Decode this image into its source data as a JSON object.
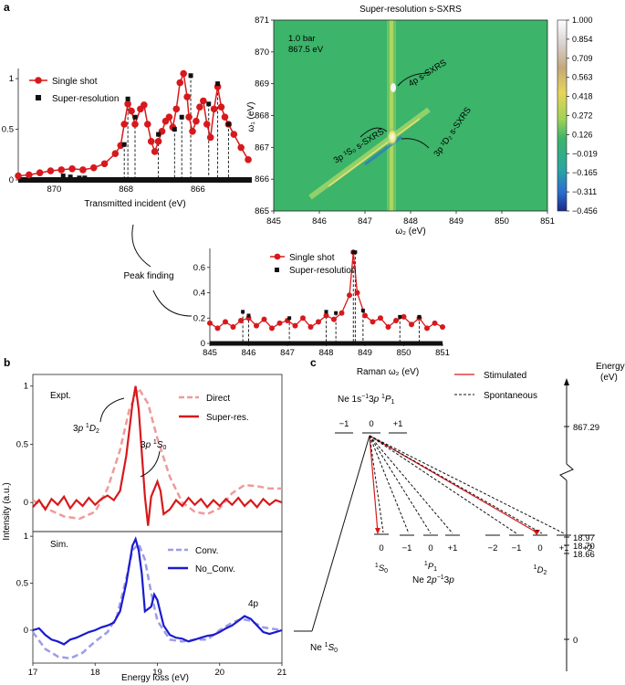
{
  "panel_labels": {
    "a": "a",
    "b": "b",
    "c": "c"
  },
  "chart_data": [
    {
      "id": "a_left",
      "type": "scatter",
      "xlabel": "Transmitted incident (eV)",
      "xlim": [
        871,
        864.5
      ],
      "ylim": [
        0,
        1.1
      ],
      "xticks": [
        870,
        868,
        866
      ],
      "yticks": [
        0,
        0.5,
        1.0
      ],
      "legend": [
        "Single shot",
        "Super-resolution"
      ],
      "series": [
        {
          "name": "Single shot",
          "x": [
            871.0,
            870.7,
            870.4,
            870.1,
            869.8,
            869.5,
            869.2,
            868.9,
            868.6,
            868.3,
            868.15,
            868.05,
            867.95,
            867.85,
            867.75,
            867.6,
            867.5,
            867.4,
            867.3,
            867.2,
            867.1,
            867.0,
            866.9,
            866.8,
            866.7,
            866.6,
            866.5,
            866.4,
            866.3,
            866.25,
            866.15,
            866.05,
            865.95,
            865.85,
            865.75,
            865.65,
            865.55,
            865.45,
            865.35,
            865.25,
            865.15,
            865.0,
            864.8,
            864.6
          ],
          "y": [
            0.04,
            0.05,
            0.07,
            0.09,
            0.1,
            0.11,
            0.1,
            0.12,
            0.16,
            0.26,
            0.34,
            0.55,
            0.75,
            0.68,
            0.55,
            0.7,
            0.74,
            0.55,
            0.38,
            0.28,
            0.38,
            0.48,
            0.58,
            0.62,
            0.52,
            0.7,
            0.96,
            1.05,
            0.82,
            0.62,
            0.48,
            0.58,
            0.72,
            0.78,
            0.55,
            0.42,
            0.7,
            0.92,
            0.72,
            0.62,
            0.55,
            0.45,
            0.32,
            0.2
          ]
        },
        {
          "name": "Super-resolution",
          "x": [
            869.75,
            869.55,
            869.3,
            869.15,
            868.05,
            867.95,
            867.75,
            867.1,
            866.65,
            866.45,
            866.2,
            865.7,
            865.45,
            865.15
          ],
          "y": [
            0.04,
            0.03,
            0.02,
            0.02,
            0.35,
            0.8,
            0.62,
            0.45,
            0.5,
            0.62,
            1.03,
            0.75,
            0.95,
            0.55
          ]
        }
      ]
    },
    {
      "id": "a_map",
      "type": "heatmap",
      "title": "Super-resolution s-SXRS",
      "xlabel": "ω₂ (eV)",
      "ylabel": "ω₁ (eV)",
      "xlim": [
        845,
        851
      ],
      "ylim": [
        865,
        871
      ],
      "xticks": [
        845,
        846,
        847,
        848,
        849,
        850,
        851
      ],
      "yticks": [
        865,
        866,
        867,
        868,
        869,
        870,
        871
      ],
      "annotations": [
        "1.0 bar",
        "867.5 eV",
        "4p s-SXRS",
        "3p ¹S₀ s-SXRS",
        "3p ¹D₂ s-SXRS"
      ],
      "colorbar": [
        1.0,
        0.854,
        0.709,
        0.563,
        0.418,
        0.272,
        0.126,
        -0.019,
        -0.165,
        -0.311,
        -0.456
      ]
    },
    {
      "id": "a_raman",
      "type": "scatter",
      "xlabel": "Raman ω₂ (eV)",
      "xlim": [
        845,
        851
      ],
      "ylim": [
        0,
        0.75
      ],
      "xticks": [
        845,
        846,
        847,
        848,
        849,
        850,
        851
      ],
      "yticks": [
        0,
        0.2,
        0.4,
        0.6
      ],
      "legend": [
        "Single shot",
        "Super-resolution"
      ],
      "series": [
        {
          "name": "Single shot",
          "x": [
            845.0,
            845.2,
            845.4,
            845.6,
            845.8,
            846.0,
            846.2,
            846.4,
            846.6,
            846.8,
            847.0,
            847.2,
            847.4,
            847.6,
            847.8,
            848.0,
            848.2,
            848.4,
            848.6,
            848.7,
            848.8,
            849.0,
            849.2,
            849.4,
            849.6,
            849.8,
            850.0,
            850.2,
            850.4,
            850.6,
            850.8,
            851.0
          ],
          "y": [
            0.16,
            0.12,
            0.17,
            0.13,
            0.18,
            0.2,
            0.14,
            0.19,
            0.12,
            0.16,
            0.18,
            0.14,
            0.2,
            0.13,
            0.17,
            0.22,
            0.19,
            0.24,
            0.38,
            0.72,
            0.4,
            0.22,
            0.17,
            0.2,
            0.13,
            0.18,
            0.21,
            0.15,
            0.2,
            0.12,
            0.16,
            0.13
          ]
        },
        {
          "name": "Super-resolution",
          "x": [
            845.85,
            846.0,
            847.05,
            848.0,
            848.25,
            848.7,
            848.75,
            848.95,
            849.9,
            850.4
          ],
          "y": [
            0.25,
            0.22,
            0.2,
            0.25,
            0.24,
            0.72,
            0.72,
            0.26,
            0.21,
            0.21
          ]
        }
      ]
    },
    {
      "id": "b_top",
      "type": "line",
      "ylabel": "Intensity (a.u.)",
      "xlim": [
        17,
        21
      ],
      "ylim": [
        -0.25,
        1.1
      ],
      "xticks": [
        17,
        18,
        19,
        20,
        21
      ],
      "yticks": [
        0,
        0.5,
        1.0
      ],
      "annotations": [
        "Expt.",
        "3p ¹D₂",
        "3p ¹S₀"
      ],
      "series": [
        {
          "name": "Direct",
          "x": [
            17.0,
            17.25,
            17.5,
            17.75,
            18.0,
            18.2,
            18.4,
            18.55,
            18.7,
            18.85,
            19.0,
            19.2,
            19.4,
            19.6,
            19.8,
            20.0,
            20.2,
            20.4,
            20.6,
            20.8,
            21.0
          ],
          "y": [
            0.02,
            -0.06,
            -0.12,
            -0.14,
            -0.08,
            0.12,
            0.45,
            0.8,
            0.98,
            0.85,
            0.55,
            0.22,
            0.0,
            -0.08,
            -0.1,
            -0.05,
            0.08,
            0.15,
            0.14,
            0.12,
            0.12
          ]
        },
        {
          "name": "Super-res.",
          "x": [
            17.0,
            17.1,
            17.2,
            17.3,
            17.4,
            17.5,
            17.6,
            17.7,
            17.8,
            17.9,
            18.0,
            18.1,
            18.2,
            18.3,
            18.4,
            18.5,
            18.6,
            18.65,
            18.7,
            18.8,
            18.85,
            18.9,
            19.0,
            19.05,
            19.1,
            19.2,
            19.3,
            19.4,
            19.5,
            19.6,
            19.7,
            19.8,
            19.9,
            20.0,
            20.1,
            20.2,
            20.3,
            20.4,
            20.5,
            20.6,
            20.7,
            20.8,
            20.9,
            21.0
          ],
          "y": [
            -0.04,
            0.02,
            -0.06,
            0.03,
            -0.02,
            0.05,
            -0.05,
            0.02,
            -0.03,
            0.04,
            -0.02,
            0.03,
            0.06,
            0.02,
            0.1,
            0.4,
            0.85,
            1.0,
            0.8,
            0.05,
            -0.2,
            0.05,
            0.18,
            0.1,
            -0.1,
            -0.06,
            0.02,
            -0.03,
            0.04,
            -0.02,
            0.03,
            -0.04,
            0.02,
            -0.03,
            0.03,
            -0.02,
            0.04,
            -0.03,
            0.02,
            -0.04,
            0.03,
            -0.02,
            0.02,
            0.0
          ]
        }
      ]
    },
    {
      "id": "b_bottom",
      "type": "line",
      "xlabel": "Energy loss (eV)",
      "xlim": [
        17,
        21
      ],
      "ylim": [
        -0.35,
        1.05
      ],
      "xticks": [
        17,
        18,
        19,
        20,
        21
      ],
      "yticks": [
        0,
        0.5,
        1.0
      ],
      "annotations": [
        "Sim.",
        "4p"
      ],
      "series": [
        {
          "name": "Conv.",
          "x": [
            17.0,
            17.2,
            17.4,
            17.6,
            17.8,
            18.0,
            18.2,
            18.35,
            18.5,
            18.6,
            18.7,
            18.8,
            18.9,
            19.0,
            19.2,
            19.4,
            19.6,
            19.8,
            20.0,
            20.2,
            20.35,
            20.5,
            20.7,
            21.0
          ],
          "y": [
            -0.02,
            -0.2,
            -0.28,
            -0.3,
            -0.24,
            -0.12,
            -0.02,
            0.15,
            0.55,
            0.85,
            0.92,
            0.75,
            0.4,
            0.1,
            -0.1,
            -0.12,
            -0.1,
            -0.1,
            0.0,
            0.08,
            0.12,
            0.1,
            0.03,
            0.0
          ]
        },
        {
          "name": "No_Conv.",
          "x": [
            17.0,
            17.1,
            17.2,
            17.3,
            17.4,
            17.5,
            17.6,
            17.7,
            17.8,
            17.9,
            18.0,
            18.1,
            18.2,
            18.3,
            18.4,
            18.5,
            18.6,
            18.65,
            18.7,
            18.75,
            18.8,
            18.9,
            18.95,
            19.0,
            19.1,
            19.2,
            19.3,
            19.4,
            19.5,
            19.6,
            19.7,
            19.8,
            19.9,
            20.0,
            20.1,
            20.2,
            20.3,
            20.4,
            20.5,
            20.6,
            20.7,
            20.8,
            20.9,
            21.0
          ],
          "y": [
            0.0,
            0.02,
            -0.05,
            -0.1,
            -0.12,
            -0.15,
            -0.1,
            -0.08,
            -0.05,
            -0.02,
            0.0,
            0.03,
            0.05,
            0.08,
            0.2,
            0.5,
            0.9,
            0.97,
            0.85,
            0.6,
            0.2,
            0.25,
            0.38,
            0.32,
            0.05,
            -0.05,
            -0.08,
            -0.09,
            -0.12,
            -0.1,
            -0.08,
            -0.06,
            -0.05,
            -0.02,
            0.02,
            0.05,
            0.1,
            0.15,
            0.12,
            0.05,
            -0.02,
            -0.04,
            -0.02,
            0.0
          ]
        }
      ]
    }
  ],
  "diagram_c": {
    "upper_state": "Ne 1s⁻¹3p ¹P₁",
    "upper_ms": [
      "−1",
      "0",
      "+1"
    ],
    "legend": [
      "Stimulated",
      "Spontaneous"
    ],
    "energy_axis": "Energy (eV)",
    "energy_ticks": [
      "867.29",
      "18.97",
      "18.70",
      "18.66",
      "0"
    ],
    "ground_state": "Ne ¹S₀",
    "middle_config": "Ne 2p⁻¹3p",
    "group_labels": [
      "¹S₀",
      "¹P₁",
      "¹D₂"
    ],
    "s0_ms": [
      "0"
    ],
    "p1_ms": [
      "−1",
      "0",
      "+1"
    ],
    "d2_ms": [
      "−2",
      "−1",
      "0",
      "+1",
      "+2"
    ]
  },
  "colors": {
    "red": "#d7191c",
    "light_red": "#ee9a9a",
    "blue": "#1a1ad0",
    "light_blue": "#9c9ce8",
    "map_bg": "#3cb46a"
  }
}
